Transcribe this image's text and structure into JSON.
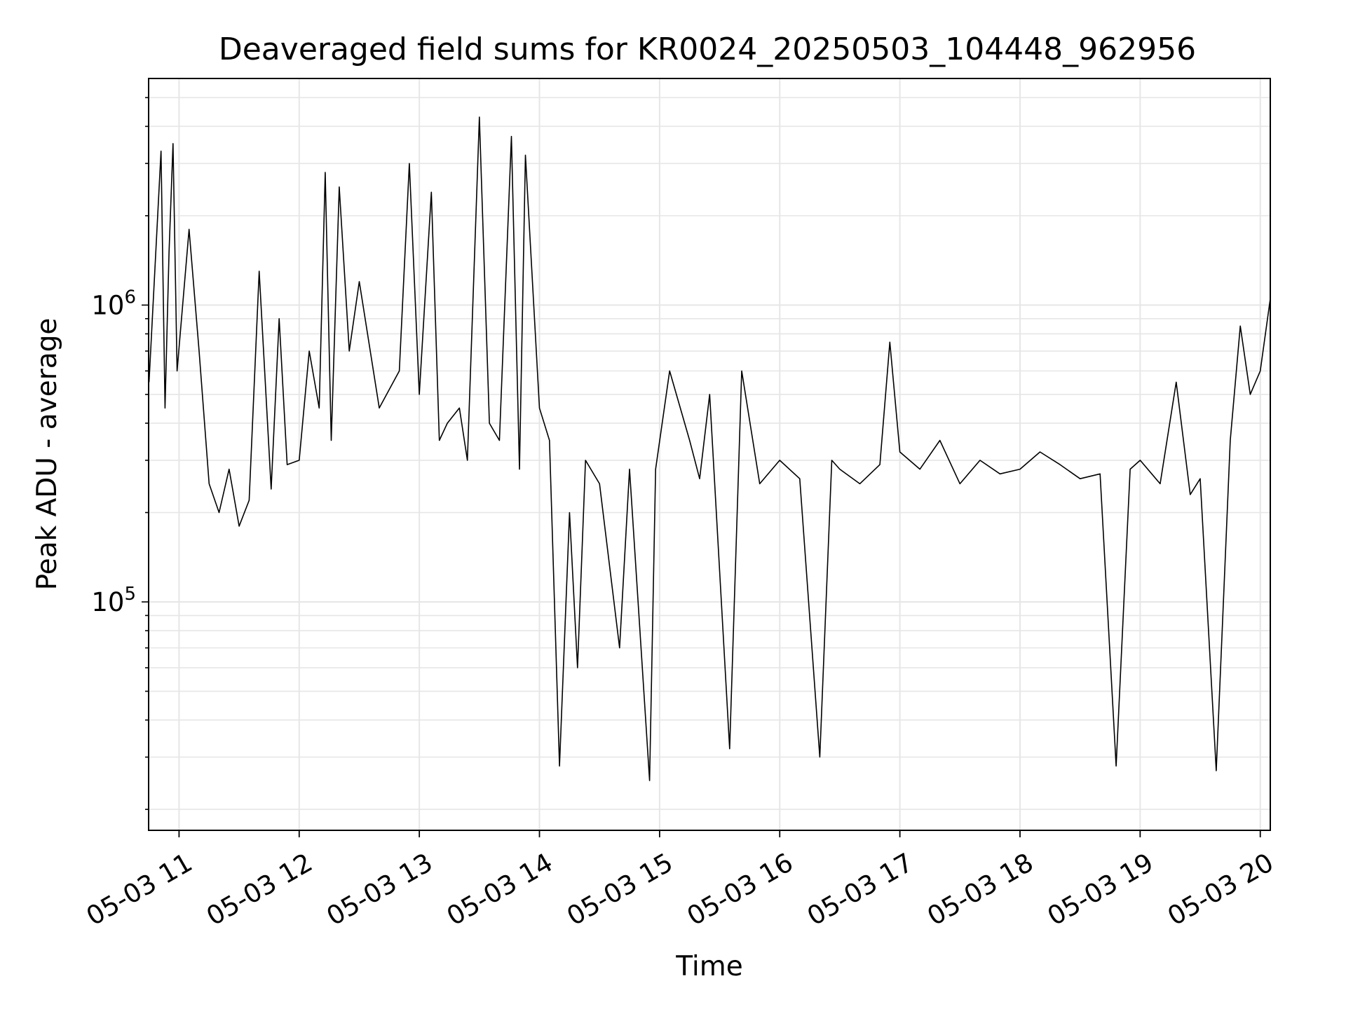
{
  "chart_data": {
    "type": "line",
    "title": "Deaveraged field sums for KR0024_20250503_104448_962956",
    "xlabel": "Time",
    "ylabel": "Peak ADU - average",
    "x_axis": {
      "kind": "datetime",
      "range": [
        "2025-05-03T10:44:48",
        "2025-05-03T20:05:00"
      ],
      "ticks": [
        {
          "value": "2025-05-03T11:00",
          "label": "05-03 11"
        },
        {
          "value": "2025-05-03T12:00",
          "label": "05-03 12"
        },
        {
          "value": "2025-05-03T13:00",
          "label": "05-03 13"
        },
        {
          "value": "2025-05-03T14:00",
          "label": "05-03 14"
        },
        {
          "value": "2025-05-03T15:00",
          "label": "05-03 15"
        },
        {
          "value": "2025-05-03T16:00",
          "label": "05-03 16"
        },
        {
          "value": "2025-05-03T17:00",
          "label": "05-03 17"
        },
        {
          "value": "2025-05-03T18:00",
          "label": "05-03 18"
        },
        {
          "value": "2025-05-03T19:00",
          "label": "05-03 19"
        },
        {
          "value": "2025-05-03T20:00",
          "label": "05-03 20"
        }
      ]
    },
    "y_axis": {
      "scale": "log",
      "range": [
        17000,
        5800000
      ],
      "ticks": [
        {
          "value": 100000,
          "base": "10",
          "exponent": "5"
        },
        {
          "value": 1000000,
          "base": "10",
          "exponent": "6"
        }
      ]
    },
    "grid": true,
    "line_color": "#000000",
    "grid_color": "#e6e6e6",
    "series": [
      {
        "x": [
          "2025-05-03T10:45",
          "2025-05-03T10:51",
          "2025-05-03T10:53",
          "2025-05-03T10:55",
          "2025-05-03T10:57",
          "2025-05-03T10:59",
          "2025-05-03T11:05",
          "2025-05-03T11:10",
          "2025-05-03T11:15",
          "2025-05-03T11:20",
          "2025-05-03T11:25",
          "2025-05-03T11:30",
          "2025-05-03T11:35",
          "2025-05-03T11:40",
          "2025-05-03T11:46",
          "2025-05-03T11:50",
          "2025-05-03T11:54",
          "2025-05-03T12:00",
          "2025-05-03T12:05",
          "2025-05-03T12:10",
          "2025-05-03T12:13",
          "2025-05-03T12:16",
          "2025-05-03T12:20",
          "2025-05-03T12:25",
          "2025-05-03T12:30",
          "2025-05-03T12:40",
          "2025-05-03T12:50",
          "2025-05-03T12:55",
          "2025-05-03T13:00",
          "2025-05-03T13:06",
          "2025-05-03T13:10",
          "2025-05-03T13:14",
          "2025-05-03T13:20",
          "2025-05-03T13:24",
          "2025-05-03T13:30",
          "2025-05-03T13:35",
          "2025-05-03T13:40",
          "2025-05-03T13:46",
          "2025-05-03T13:50",
          "2025-05-03T13:53",
          "2025-05-03T14:00",
          "2025-05-03T14:05",
          "2025-05-03T14:10",
          "2025-05-03T14:15",
          "2025-05-03T14:19",
          "2025-05-03T14:23",
          "2025-05-03T14:30",
          "2025-05-03T14:40",
          "2025-05-03T14:45",
          "2025-05-03T14:55",
          "2025-05-03T14:58",
          "2025-05-03T15:05",
          "2025-05-03T15:15",
          "2025-05-03T15:20",
          "2025-05-03T15:25",
          "2025-05-03T15:35",
          "2025-05-03T15:41",
          "2025-05-03T15:50",
          "2025-05-03T16:00",
          "2025-05-03T16:10",
          "2025-05-03T16:20",
          "2025-05-03T16:26",
          "2025-05-03T16:30",
          "2025-05-03T16:40",
          "2025-05-03T16:50",
          "2025-05-03T16:55",
          "2025-05-03T17:00",
          "2025-05-03T17:10",
          "2025-05-03T17:20",
          "2025-05-03T17:30",
          "2025-05-03T17:40",
          "2025-05-03T17:50",
          "2025-05-03T18:00",
          "2025-05-03T18:10",
          "2025-05-03T18:20",
          "2025-05-03T18:30",
          "2025-05-03T18:40",
          "2025-05-03T18:48",
          "2025-05-03T18:55",
          "2025-05-03T19:00",
          "2025-05-03T19:10",
          "2025-05-03T19:18",
          "2025-05-03T19:25",
          "2025-05-03T19:30",
          "2025-05-03T19:38",
          "2025-05-03T19:45",
          "2025-05-03T19:50",
          "2025-05-03T19:55",
          "2025-05-03T20:00",
          "2025-05-03T20:05"
        ],
        "y": [
          550000,
          3300000,
          450000,
          1500000,
          3500000,
          600000,
          1800000,
          700000,
          250000,
          200000,
          280000,
          180000,
          220000,
          1300000,
          240000,
          900000,
          290000,
          300000,
          700000,
          450000,
          2800000,
          350000,
          2500000,
          700000,
          1200000,
          450000,
          600000,
          3000000,
          500000,
          2400000,
          350000,
          400000,
          450000,
          300000,
          4300000,
          400000,
          350000,
          3700000,
          280000,
          3200000,
          450000,
          350000,
          28000,
          200000,
          60000,
          300000,
          250000,
          70000,
          280000,
          25000,
          280000,
          600000,
          350000,
          260000,
          500000,
          32000,
          600000,
          250000,
          300000,
          260000,
          30000,
          300000,
          280000,
          250000,
          290000,
          750000,
          320000,
          280000,
          350000,
          250000,
          300000,
          270000,
          280000,
          320000,
          290000,
          260000,
          270000,
          28000,
          280000,
          300000,
          250000,
          550000,
          230000,
          260000,
          27000,
          350000,
          850000,
          500000,
          600000,
          1050000
        ]
      }
    ]
  }
}
